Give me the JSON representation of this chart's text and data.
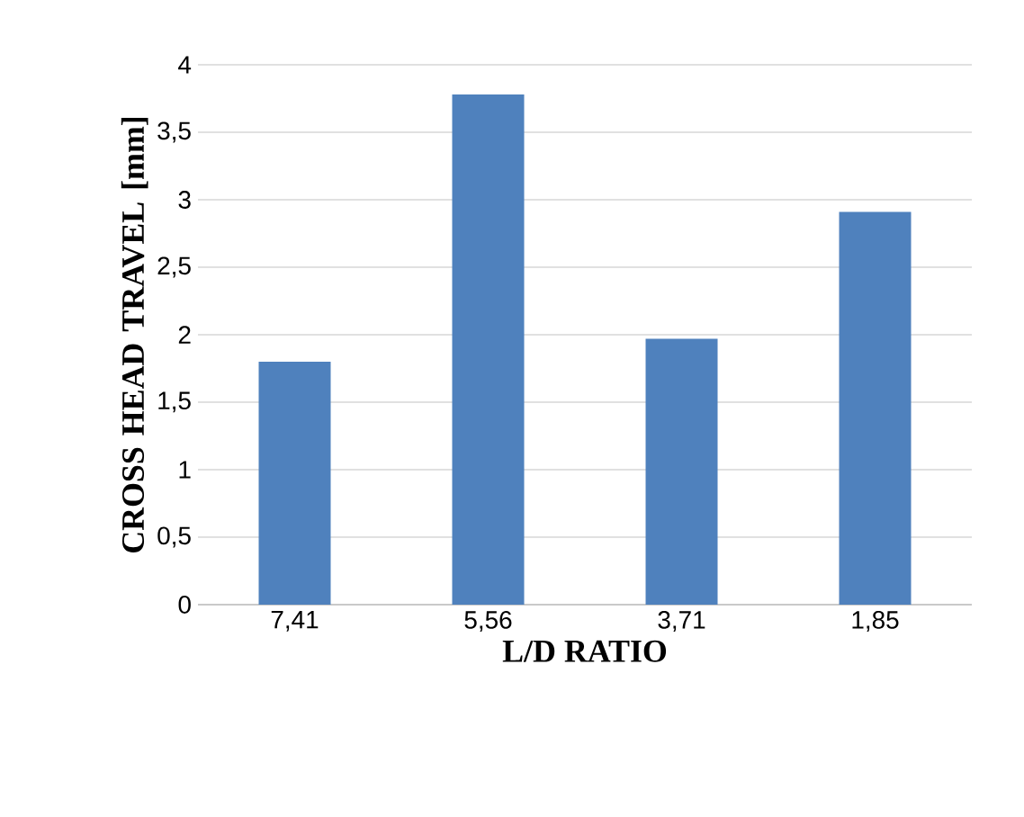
{
  "chart_data": {
    "type": "bar",
    "xlabel": "L/D RATIO",
    "ylabel": "CROSS HEAD TRAVEL [mm]",
    "categories": [
      "7,41",
      "5,56",
      "3,71",
      "1,85"
    ],
    "values": [
      1.8,
      3.78,
      1.97,
      2.91
    ],
    "color": "#4f81bd",
    "ylim": [
      0,
      4
    ],
    "yticks": [
      0,
      {
        "value": 0.5,
        "label": "0,5"
      },
      1,
      {
        "value": 1.5,
        "label": "1,5"
      },
      2,
      {
        "value": 2.5,
        "label": "2,5"
      },
      3,
      {
        "value": 3.5,
        "label": "3,5"
      },
      4
    ],
    "grid": "y"
  }
}
